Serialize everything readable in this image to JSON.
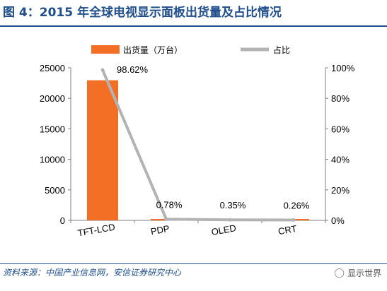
{
  "figure": {
    "title": "图 4：2015 年全球电视显示面板出货量及占比情况",
    "source": "资料来源：中国产业信息网，安信证券研究中心",
    "watermark": "显示世界",
    "watermark_icon": "wechat-icon"
  },
  "colors": {
    "bar": "#f36f26",
    "line": "#b3b3b3",
    "text": "#000000",
    "title": "#1f4e8c"
  },
  "chart_data": {
    "type": "bar",
    "categories": [
      "TFT-LCD",
      "PDP",
      "OLED",
      "CRT"
    ],
    "series": [
      {
        "name": "出货量（万台）",
        "type": "bar",
        "axis": "left",
        "values": [
          22960,
          179,
          80,
          60
        ]
      },
      {
        "name": "占比",
        "type": "line",
        "axis": "right",
        "values": [
          98.62,
          0.78,
          0.35,
          0.26
        ],
        "labels": [
          "98.62%",
          "0.78%",
          "0.35%",
          "0.26%"
        ]
      }
    ],
    "ylim_left": [
      0,
      25000
    ],
    "yticks_left": [
      "0",
      "5000",
      "10000",
      "15000",
      "20000",
      "25000"
    ],
    "ylim_right": [
      0,
      100
    ],
    "yticks_right": [
      "0%",
      "20%",
      "40%",
      "60%",
      "80%",
      "100%"
    ],
    "legend": "top-center",
    "grid": false
  }
}
